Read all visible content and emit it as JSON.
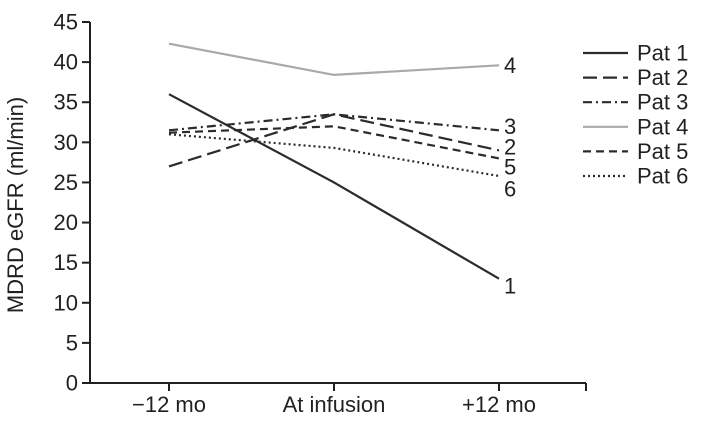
{
  "chart_data": {
    "type": "line",
    "title": "",
    "xlabel": "",
    "ylabel": "MDRD eGFR (ml/min)",
    "categories": [
      "−12 mo",
      "At infusion",
      "+12 mo"
    ],
    "ylim": [
      0,
      45
    ],
    "ytick_step": 5,
    "grid": false,
    "legend_position": "right",
    "axis_color": "#231f20",
    "series": [
      {
        "name": "Pat 1",
        "values": [
          36,
          25,
          13
        ],
        "line_style": "solid",
        "color": "#2b2b2b",
        "end_label": "1",
        "end_label_value": 12.1
      },
      {
        "name": "Pat 2",
        "values": [
          27,
          33.5,
          29
        ],
        "line_style": "long-dash",
        "color": "#2b2b2b",
        "end_label": "2",
        "end_label_value": 29.4
      },
      {
        "name": "Pat 3",
        "values": [
          31.5,
          33.5,
          31.5
        ],
        "line_style": "dash-dot",
        "color": "#2b2b2b",
        "end_label": "3",
        "end_label_value": 32.0
      },
      {
        "name": "Pat 4",
        "values": [
          42.3,
          38.4,
          39.6
        ],
        "line_style": "solid",
        "color": "#a7a9ac",
        "end_label": "4",
        "end_label_value": 39.6
      },
      {
        "name": "Pat 5",
        "values": [
          31.2,
          32,
          28
        ],
        "line_style": "dash",
        "color": "#2b2b2b",
        "end_label": "5",
        "end_label_value": 26.9
      },
      {
        "name": "Pat 6",
        "values": [
          31,
          29.3,
          25.8
        ],
        "line_style": "dotted",
        "color": "#2b2b2b",
        "end_label": "6",
        "end_label_value": 24.2
      }
    ]
  }
}
